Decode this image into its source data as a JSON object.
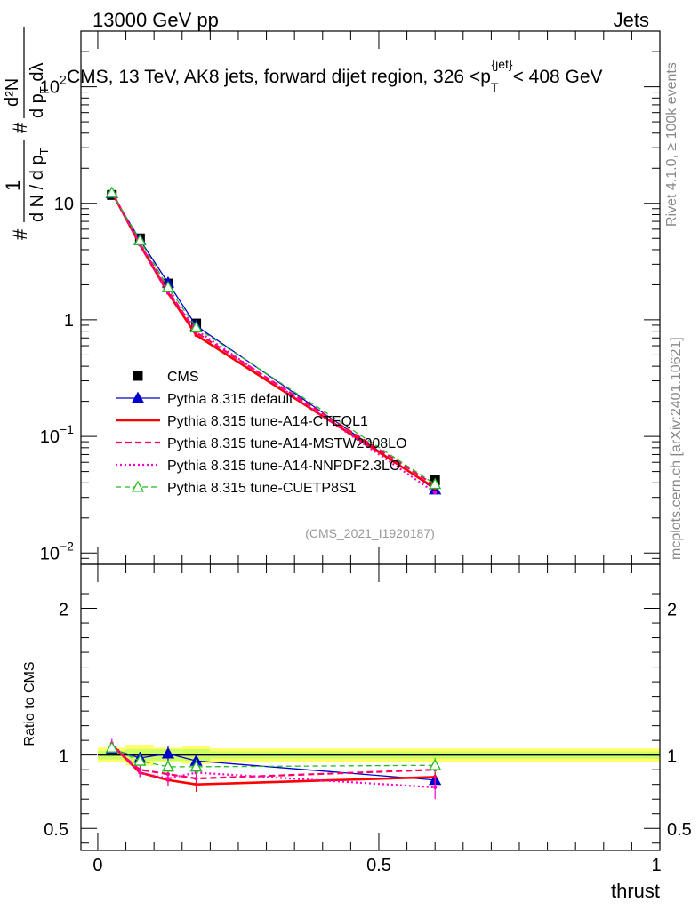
{
  "header": {
    "energy_label": "13000 GeV pp",
    "category_label": "Jets"
  },
  "side_labels": {
    "rivet": "Rivet 4.1.0, ≥ 100k events",
    "source": "mcplots.cern.ch [arXiv:2401.10621]"
  },
  "watermark": "(CMS_2021_I1920187)",
  "colors": {
    "cms": "#000000",
    "default": "#0000cc",
    "cteql1": "#ff0000",
    "mstw": "#ff0066",
    "nnpdf": "#ff00cc",
    "cuetp8s1": "#22bb22",
    "band_inner": "#ffff66",
    "band_outer": "#ccff66"
  },
  "chart_data": [
    {
      "type": "line",
      "panel": "main",
      "title": "CMS, 13 TeV, AK8 jets, forward dijet region, 326 <p_T^{jet}< 408 GeV",
      "title_parts": {
        "pre": "CMS, 13 TeV, AK8 jets, forward dijet region, 326 <p",
        "sub": "T",
        "sup": "{jet}",
        "post": "< 408 GeV"
      },
      "ylabel_parts": {
        "frac_num": "1",
        "frac_den": "d N / d p",
        "den_sub": "T",
        "hash": "#",
        "rhs_num": "d²N",
        "rhs_den": "d p",
        "rhs_den_sub": "T",
        "rhs_den_tail": " dλ"
      },
      "yscale": "log",
      "ylim": [
        0.008,
        300
      ],
      "xlim": [
        -0.03,
        1.0
      ],
      "yticks": [
        {
          "value": 0.01,
          "label": "10",
          "exp": "−2"
        },
        {
          "value": 0.1,
          "label": "10",
          "exp": "−1"
        },
        {
          "value": 1,
          "label": "1",
          "exp": ""
        },
        {
          "value": 10,
          "label": "10",
          "exp": ""
        },
        {
          "value": 100,
          "label": "10",
          "exp": "2"
        }
      ],
      "x": [
        0.025,
        0.075,
        0.125,
        0.175,
        0.6
      ],
      "series": [
        {
          "key": "cms",
          "name": "CMS",
          "values": [
            11.8,
            5.0,
            2.05,
            0.93,
            0.042
          ],
          "errors": [
            0.4,
            0.2,
            0.09,
            0.04,
            0.003
          ]
        },
        {
          "key": "default",
          "name": "Pythia 8.315 default",
          "values": [
            12.2,
            4.85,
            2.08,
            0.89,
            0.035
          ]
        },
        {
          "key": "cteql1",
          "name": "Pythia 8.315 tune-A14-CTEQL1",
          "values": [
            12.5,
            4.4,
            1.7,
            0.74,
            0.036
          ]
        },
        {
          "key": "mstw",
          "name": "Pythia 8.315 tune-A14-MSTW2008LO",
          "values": [
            12.4,
            4.5,
            1.78,
            0.78,
            0.038
          ]
        },
        {
          "key": "nnpdf",
          "name": "Pythia 8.315 tune-A14-NNPDF2.3LO",
          "values": [
            12.6,
            4.4,
            1.72,
            0.82,
            0.033
          ]
        },
        {
          "key": "cuetp8s1",
          "name": "Pythia 8.315 tune-CUETP8S1",
          "values": [
            12.3,
            4.8,
            1.9,
            0.86,
            0.039
          ]
        }
      ]
    },
    {
      "type": "line",
      "panel": "ratio",
      "ylabel": "Ratio to CMS",
      "xlabel": "thrust",
      "ylim": [
        0.35,
        2.3
      ],
      "xlim": [
        -0.03,
        1.0
      ],
      "yticks": [
        {
          "value": 0.5,
          "label": "0.5"
        },
        {
          "value": 1,
          "label": "1"
        },
        {
          "value": 2,
          "label": "2"
        }
      ],
      "xticks": [
        {
          "value": 0,
          "label": "0"
        },
        {
          "value": 0.5,
          "label": "0.5"
        },
        {
          "value": 1,
          "label": "1"
        }
      ],
      "x": [
        0.025,
        0.075,
        0.125,
        0.175,
        0.6
      ],
      "band": [
        {
          "x0": 0.0,
          "x1": 0.05,
          "inner": 0.03,
          "outer": 0.05
        },
        {
          "x0": 0.05,
          "x1": 0.1,
          "inner": 0.04,
          "outer": 0.07
        },
        {
          "x0": 0.1,
          "x1": 0.15,
          "inner": 0.04,
          "outer": 0.05
        },
        {
          "x0": 0.15,
          "x1": 0.2,
          "inner": 0.04,
          "outer": 0.06
        },
        {
          "x0": 0.2,
          "x1": 1.0,
          "inner": 0.025,
          "outer": 0.045
        }
      ],
      "series": [
        {
          "key": "default",
          "values": [
            1.04,
            0.98,
            1.01,
            0.96,
            0.83
          ],
          "errors": [
            0.03,
            0.04,
            0.05,
            0.05,
            0.05
          ]
        },
        {
          "key": "cteql1",
          "values": [
            1.07,
            0.88,
            0.83,
            0.8,
            0.85
          ],
          "errors": [
            0.03,
            0.03,
            0.04,
            0.05,
            0.05
          ]
        },
        {
          "key": "mstw",
          "values": [
            1.06,
            0.9,
            0.87,
            0.84,
            0.9
          ],
          "errors": [
            0.03,
            0.03,
            0.04,
            0.05,
            0.05
          ]
        },
        {
          "key": "nnpdf",
          "values": [
            1.08,
            0.88,
            0.84,
            0.88,
            0.78
          ],
          "errors": [
            0.03,
            0.03,
            0.04,
            0.05,
            0.08
          ]
        },
        {
          "key": "cuetp8s1",
          "values": [
            1.05,
            0.96,
            0.92,
            0.92,
            0.93
          ],
          "errors": [
            0.03,
            0.04,
            0.04,
            0.05,
            0.05
          ]
        }
      ]
    }
  ]
}
